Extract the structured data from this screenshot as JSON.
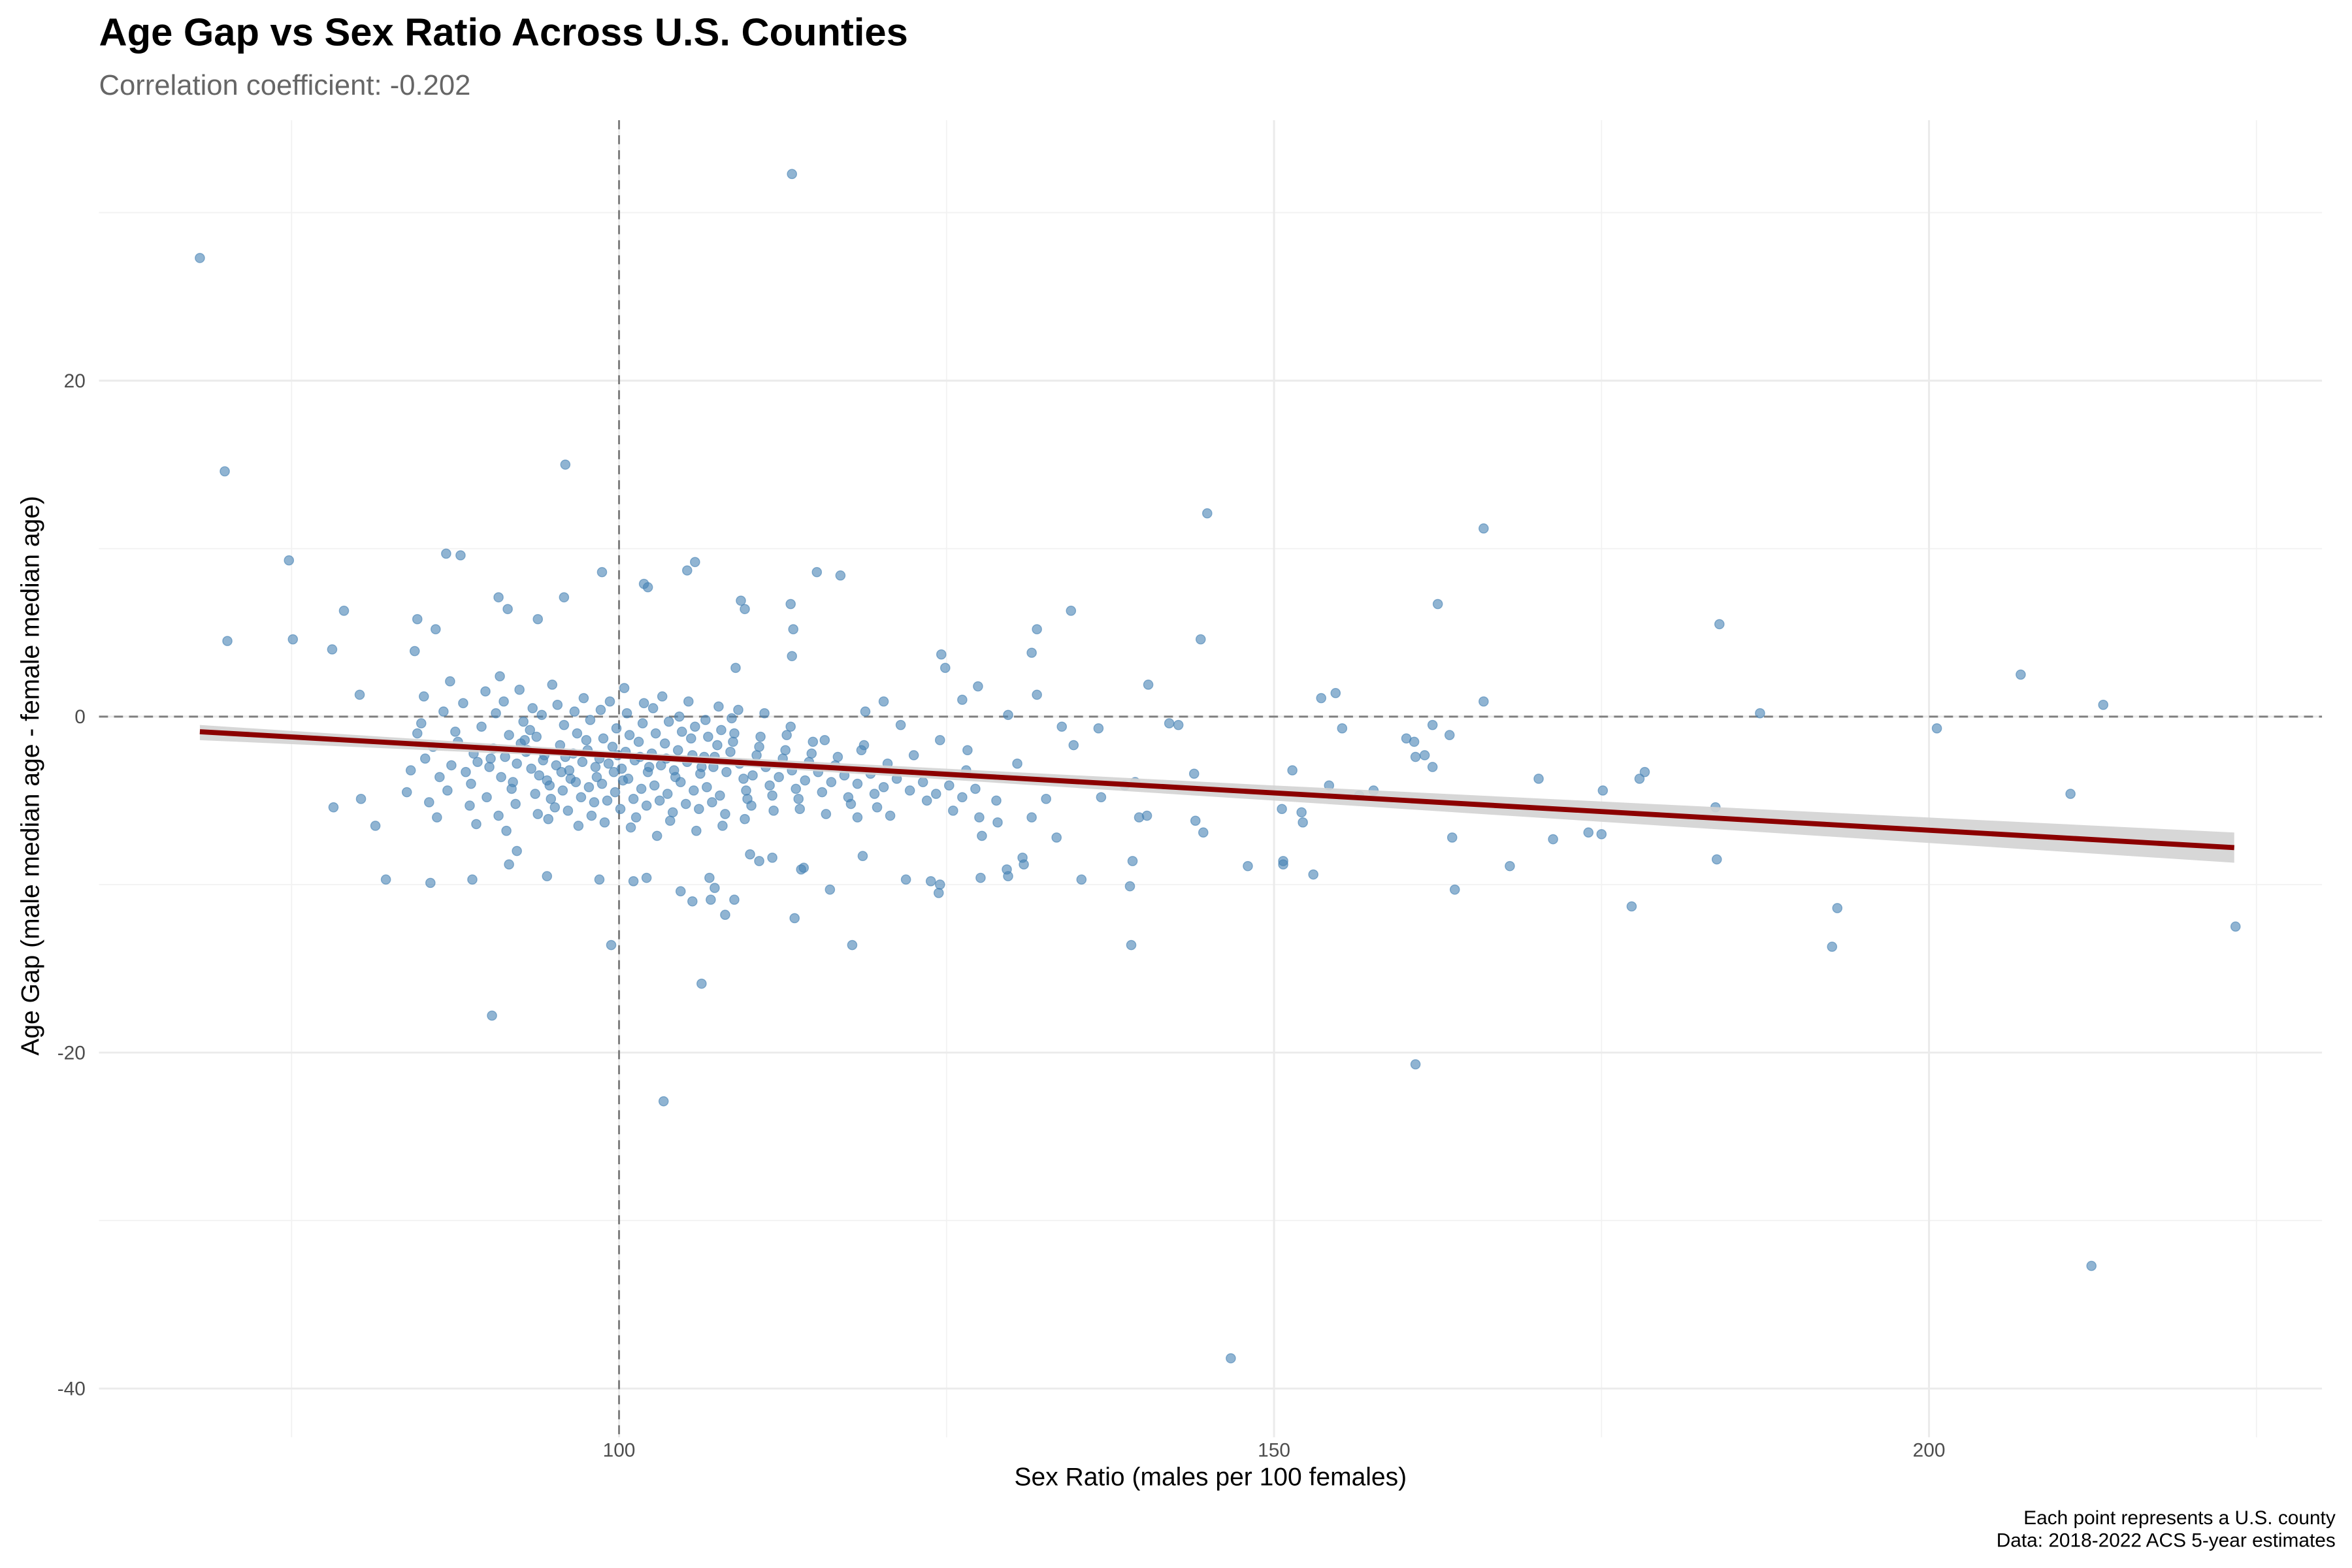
{
  "chart_data": {
    "type": "scatter",
    "title": "Age Gap vs Sex Ratio Across U.S. Counties",
    "subtitle": "Correlation coefficient: -0.202",
    "xlabel": "Sex Ratio (males per 100 females)",
    "ylabel": "Age Gap (male median age - female median age)",
    "caption": [
      "Each point represents a U.S. county",
      "Data: 2018-2022 ACS 5-year estimates"
    ],
    "xlim": [
      60.3,
      230.0
    ],
    "ylim": [
      -42.9,
      35.5
    ],
    "x_ticks": [
      100,
      150,
      200
    ],
    "y_ticks": [
      -40,
      -20,
      0,
      20
    ],
    "x_minor": [
      75,
      125,
      175,
      225
    ],
    "y_minor": [
      -30,
      -10,
      10,
      30
    ],
    "grid": true,
    "reference_lines": {
      "x": 100,
      "y": 0,
      "style": "dashed"
    },
    "colors": {
      "points": "#4682b4",
      "trend": "#8b0000",
      "band": "#d3d3d3",
      "reference": "#7f7f7f",
      "grid": "#ebebeb"
    },
    "trend_line": {
      "type": "linear",
      "x": [
        68.0,
        223.3
      ],
      "y": [
        -0.9,
        -7.8
      ]
    },
    "confidence_band": [
      [
        68.0,
        -1.4,
        -0.5
      ],
      [
        100,
        -2.5,
        -2.1
      ],
      [
        150,
        -5.0,
        -4.1
      ],
      [
        223.3,
        -8.7,
        -6.9
      ]
    ],
    "points": [
      [
        68.0,
        27.3
      ],
      [
        113.2,
        32.3
      ],
      [
        69.9,
        14.6
      ],
      [
        70.1,
        4.5
      ],
      [
        74.8,
        9.3
      ],
      [
        75.1,
        4.6
      ],
      [
        79.0,
        6.3
      ],
      [
        78.1,
        4.0
      ],
      [
        78.2,
        -5.4
      ],
      [
        80.2,
        1.3
      ],
      [
        80.3,
        -4.9
      ],
      [
        81.4,
        -6.5
      ],
      [
        95.9,
        15.0
      ],
      [
        86.8,
        9.7
      ],
      [
        87.9,
        9.6
      ],
      [
        85.6,
        -9.9
      ],
      [
        90.3,
        -17.8
      ],
      [
        99.4,
        -13.6
      ],
      [
        103.4,
        -22.9
      ],
      [
        106.3,
        -15.9
      ],
      [
        113.4,
        -12.0
      ],
      [
        117.8,
        -13.6
      ],
      [
        146.7,
        -38.2
      ],
      [
        144.9,
        12.1
      ],
      [
        144.4,
        4.6
      ],
      [
        166.0,
        11.2
      ],
      [
        162.5,
        6.7
      ],
      [
        166.0,
        0.9
      ],
      [
        184.0,
        5.5
      ],
      [
        187.1,
        0.2
      ],
      [
        207.0,
        2.5
      ],
      [
        213.3,
        0.7
      ],
      [
        200.6,
        -0.7
      ],
      [
        210.8,
        -4.6
      ],
      [
        212.4,
        -32.7
      ],
      [
        223.4,
        -12.5
      ],
      [
        193.0,
        -11.4
      ],
      [
        192.6,
        -13.7
      ],
      [
        160.8,
        -20.7
      ],
      [
        177.3,
        -11.3
      ],
      [
        183.8,
        -8.5
      ],
      [
        183.7,
        -5.4
      ],
      [
        175.1,
        -4.4
      ],
      [
        175.0,
        -7.0
      ],
      [
        174.0,
        -6.9
      ],
      [
        178.3,
        -3.3
      ],
      [
        177.9,
        -3.7
      ],
      [
        170.2,
        -3.7
      ],
      [
        171.3,
        -7.3
      ],
      [
        168.0,
        -8.9
      ],
      [
        163.8,
        -10.3
      ],
      [
        163.6,
        -7.2
      ],
      [
        163.4,
        -1.1
      ],
      [
        162.1,
        -0.5
      ],
      [
        160.1,
        -1.3
      ],
      [
        160.7,
        -1.5
      ],
      [
        160.8,
        -2.4
      ],
      [
        161.5,
        -2.3
      ],
      [
        162.1,
        -3.0
      ],
      [
        157.6,
        -4.4
      ],
      [
        156.5,
        -4.7
      ],
      [
        155.2,
        -0.7
      ],
      [
        154.7,
        1.4
      ],
      [
        153.6,
        1.1
      ],
      [
        154.2,
        -4.1
      ],
      [
        153.0,
        -9.4
      ],
      [
        152.1,
        -5.7
      ],
      [
        152.2,
        -6.3
      ],
      [
        151.4,
        -3.2
      ],
      [
        150.7,
        -8.6
      ],
      [
        150.7,
        -8.8
      ],
      [
        150.6,
        -5.5
      ],
      [
        148.0,
        -8.9
      ],
      [
        144.6,
        -6.9
      ],
      [
        144.0,
        -6.2
      ],
      [
        143.9,
        -3.4
      ],
      [
        142.7,
        -0.5
      ],
      [
        142.0,
        -0.4
      ],
      [
        140.4,
        1.9
      ],
      [
        140.3,
        -5.9
      ],
      [
        139.7,
        -6.0
      ],
      [
        139.2,
        -8.6
      ],
      [
        139.1,
        -13.6
      ],
      [
        139.0,
        -10.1
      ],
      [
        139.4,
        -3.9
      ],
      [
        138.6,
        -4.1
      ],
      [
        136.8,
        -4.8
      ],
      [
        136.6,
        -0.7
      ],
      [
        135.3,
        -9.7
      ],
      [
        134.7,
        -1.7
      ],
      [
        134.5,
        6.3
      ],
      [
        133.8,
        -0.6
      ],
      [
        133.4,
        -7.2
      ],
      [
        132.6,
        -4.9
      ],
      [
        131.9,
        5.2
      ],
      [
        131.5,
        3.8
      ],
      [
        131.9,
        1.3
      ],
      [
        131.5,
        -6.0
      ],
      [
        130.8,
        -8.4
      ],
      [
        130.9,
        -8.8
      ],
      [
        129.7,
        -9.5
      ],
      [
        129.6,
        -9.1
      ],
      [
        130.4,
        -2.8
      ],
      [
        129.7,
        0.1
      ],
      [
        128.8,
        -5.0
      ],
      [
        128.9,
        -6.3
      ],
      [
        127.6,
        -9.6
      ],
      [
        127.7,
        -7.1
      ],
      [
        127.4,
        1.8
      ],
      [
        126.6,
        -2.0
      ],
      [
        126.2,
        1.0
      ],
      [
        124.5,
        -10.0
      ],
      [
        124.4,
        -10.5
      ],
      [
        124.6,
        3.7
      ],
      [
        124.9,
        2.9
      ],
      [
        123.8,
        -9.8
      ],
      [
        121.9,
        -9.7
      ],
      [
        120.2,
        0.9
      ],
      [
        118.6,
        -8.3
      ],
      [
        118.2,
        -6.0
      ],
      [
        116.9,
        8.4
      ],
      [
        115.1,
        8.6
      ],
      [
        116.1,
        -10.3
      ],
      [
        113.9,
        -9.1
      ],
      [
        114.1,
        -9.0
      ],
      [
        113.3,
        5.2
      ],
      [
        113.1,
        6.7
      ],
      [
        113.2,
        3.6
      ],
      [
        108.9,
        2.9
      ],
      [
        109.6,
        6.4
      ],
      [
        109.3,
        6.9
      ],
      [
        106.9,
        -9.6
      ],
      [
        107.3,
        -10.2
      ],
      [
        108.1,
        -11.8
      ],
      [
        108.8,
        -10.9
      ],
      [
        105.6,
        -11.0
      ],
      [
        107.0,
        -10.9
      ],
      [
        104.7,
        -10.4
      ],
      [
        105.8,
        9.2
      ],
      [
        105.2,
        8.7
      ],
      [
        101.9,
        7.9
      ],
      [
        102.2,
        7.7
      ],
      [
        98.7,
        8.6
      ],
      [
        93.8,
        5.8
      ],
      [
        95.8,
        7.1
      ],
      [
        90.8,
        7.1
      ],
      [
        91.5,
        6.4
      ],
      [
        84.6,
        5.8
      ],
      [
        84.4,
        3.9
      ],
      [
        86.0,
        5.2
      ],
      [
        88.8,
        -9.7
      ],
      [
        82.2,
        -9.7
      ],
      [
        91.6,
        -8.8
      ],
      [
        92.2,
        -8.0
      ],
      [
        94.5,
        -9.5
      ],
      [
        98.5,
        -9.7
      ],
      [
        101.1,
        -9.8
      ],
      [
        102.1,
        -9.6
      ],
      [
        110.7,
        -8.6
      ],
      [
        111.7,
        -8.4
      ],
      [
        110.0,
        -8.2
      ],
      [
        84.1,
        -3.2
      ],
      [
        84.6,
        -1.0
      ],
      [
        83.8,
        -4.5
      ],
      [
        85.2,
        -2.5
      ],
      [
        84.9,
        -0.4
      ],
      [
        85.5,
        -5.1
      ],
      [
        85.1,
        1.2
      ],
      [
        86.3,
        -3.6
      ],
      [
        85.8,
        -1.8
      ],
      [
        86.6,
        0.3
      ],
      [
        86.1,
        -6.0
      ],
      [
        87.2,
        -2.9
      ],
      [
        86.9,
        -4.4
      ],
      [
        87.5,
        -0.9
      ],
      [
        87.1,
        2.1
      ],
      [
        88.3,
        -3.3
      ],
      [
        87.7,
        -1.5
      ],
      [
        88.6,
        -5.3
      ],
      [
        88.1,
        0.8
      ],
      [
        88.9,
        -2.2
      ],
      [
        89.2,
        -2.7
      ],
      [
        88.7,
        -4.0
      ],
      [
        89.5,
        -0.6
      ],
      [
        89.1,
        -6.4
      ],
      [
        89.8,
        1.5
      ],
      [
        90.1,
        -3.0
      ],
      [
        90.4,
        -1.9
      ],
      [
        89.9,
        -4.8
      ],
      [
        90.6,
        0.2
      ],
      [
        90.2,
        -2.5
      ],
      [
        90.8,
        -5.9
      ],
      [
        91.3,
        -2.4
      ],
      [
        91.0,
        -3.6
      ],
      [
        91.6,
        -1.1
      ],
      [
        91.2,
        0.9
      ],
      [
        91.8,
        -4.3
      ],
      [
        91.4,
        -6.8
      ],
      [
        90.9,
        2.4
      ],
      [
        92.2,
        -2.8
      ],
      [
        92.5,
        -1.6
      ],
      [
        91.9,
        -3.9
      ],
      [
        92.7,
        -0.3
      ],
      [
        92.1,
        -5.2
      ],
      [
        92.4,
        1.6
      ],
      [
        92.9,
        -2.1
      ],
      [
        93.3,
        -3.1
      ],
      [
        93.0,
        -2.0
      ],
      [
        93.6,
        -4.6
      ],
      [
        93.2,
        -0.8
      ],
      [
        93.8,
        -5.8
      ],
      [
        93.4,
        0.5
      ],
      [
        92.8,
        -1.4
      ],
      [
        93.9,
        -3.5
      ],
      [
        94.2,
        -2.6
      ],
      [
        94.5,
        -3.8
      ],
      [
        93.7,
        -1.2
      ],
      [
        94.8,
        -4.9
      ],
      [
        94.1,
        0.1
      ],
      [
        94.6,
        -6.1
      ],
      [
        94.3,
        -2.3
      ],
      [
        94.9,
        1.9
      ],
      [
        95.2,
        -2.9
      ],
      [
        95.5,
        -1.7
      ],
      [
        94.7,
        -4.1
      ],
      [
        95.8,
        -0.5
      ],
      [
        95.1,
        -5.4
      ],
      [
        95.6,
        -3.3
      ],
      [
        95.3,
        0.7
      ],
      [
        95.9,
        -2.4
      ],
      [
        96.2,
        -3.2
      ],
      [
        96.5,
        -2.2
      ],
      [
        95.7,
        -4.4
      ],
      [
        96.8,
        -1.0
      ],
      [
        96.1,
        -5.6
      ],
      [
        96.6,
        0.3
      ],
      [
        96.3,
        -3.7
      ],
      [
        96.9,
        -6.5
      ],
      [
        97.2,
        -2.7
      ],
      [
        97.5,
        -1.4
      ],
      [
        96.7,
        -3.9
      ],
      [
        97.8,
        -0.2
      ],
      [
        97.1,
        -4.8
      ],
      [
        97.6,
        -2.0
      ],
      [
        97.3,
        1.1
      ],
      [
        97.9,
        -5.9
      ],
      [
        98.2,
        -3.0
      ],
      [
        98.5,
        -2.5
      ],
      [
        97.7,
        -4.2
      ],
      [
        98.8,
        -1.3
      ],
      [
        98.1,
        -5.1
      ],
      [
        98.6,
        0.4
      ],
      [
        98.3,
        -3.6
      ],
      [
        98.9,
        -6.3
      ],
      [
        99.2,
        -2.8
      ],
      [
        99.5,
        -1.8
      ],
      [
        98.7,
        -4.0
      ],
      [
        99.8,
        -0.7
      ],
      [
        99.1,
        -5.0
      ],
      [
        99.6,
        -3.3
      ],
      [
        99.3,
        0.9
      ],
      [
        99.9,
        -2.3
      ],
      [
        100.2,
        -3.1
      ],
      [
        100.5,
        -2.1
      ],
      [
        99.7,
        -4.5
      ],
      [
        100.8,
        -1.1
      ],
      [
        100.1,
        -5.5
      ],
      [
        100.6,
        0.2
      ],
      [
        100.3,
        -3.8
      ],
      [
        100.9,
        -6.6
      ],
      [
        100.4,
        1.7
      ],
      [
        101.2,
        -2.6
      ],
      [
        101.5,
        -1.5
      ],
      [
        100.7,
        -3.7
      ],
      [
        101.8,
        -0.4
      ],
      [
        101.1,
        -4.9
      ],
      [
        101.6,
        -2.4
      ],
      [
        101.3,
        -6.0
      ],
      [
        101.9,
        0.8
      ],
      [
        102.2,
        -3.3
      ],
      [
        102.5,
        -2.2
      ],
      [
        101.7,
        -4.3
      ],
      [
        102.8,
        -1.0
      ],
      [
        102.1,
        -5.3
      ],
      [
        102.6,
        0.5
      ],
      [
        102.3,
        -3.0
      ],
      [
        102.9,
        -7.1
      ],
      [
        103.2,
        -2.9
      ],
      [
        103.5,
        -1.6
      ],
      [
        102.7,
        -4.1
      ],
      [
        103.8,
        -0.3
      ],
      [
        103.1,
        -5.0
      ],
      [
        103.6,
        -2.5
      ],
      [
        103.3,
        1.2
      ],
      [
        103.9,
        -6.2
      ],
      [
        104.2,
        -3.2
      ],
      [
        104.5,
        -2.0
      ],
      [
        103.7,
        -4.6
      ],
      [
        104.8,
        -0.9
      ],
      [
        104.1,
        -5.7
      ],
      [
        104.6,
        0.0
      ],
      [
        104.3,
        -3.6
      ],
      [
        105.2,
        -2.7
      ],
      [
        105.5,
        -1.3
      ],
      [
        104.7,
        -3.9
      ],
      [
        105.8,
        -0.6
      ],
      [
        105.1,
        -5.2
      ],
      [
        105.6,
        -2.3
      ],
      [
        105.3,
        0.9
      ],
      [
        105.9,
        -6.8
      ],
      [
        106.2,
        -3.4
      ],
      [
        106.5,
        -2.4
      ],
      [
        105.7,
        -4.4
      ],
      [
        106.8,
        -1.2
      ],
      [
        106.1,
        -5.5
      ],
      [
        106.6,
        -0.2
      ],
      [
        106.3,
        -3.0
      ],
      [
        107.2,
        -3.0
      ],
      [
        107.5,
        -1.7
      ],
      [
        106.7,
        -4.2
      ],
      [
        107.8,
        -0.8
      ],
      [
        107.1,
        -5.1
      ],
      [
        107.6,
        0.6
      ],
      [
        107.3,
        -2.4
      ],
      [
        107.9,
        -6.5
      ],
      [
        108.2,
        -3.3
      ],
      [
        108.5,
        -2.1
      ],
      [
        107.7,
        -4.7
      ],
      [
        108.8,
        -1.0
      ],
      [
        108.1,
        -5.8
      ],
      [
        108.6,
        -0.1
      ],
      [
        109.2,
        -2.8
      ],
      [
        109.5,
        -3.7
      ],
      [
        108.7,
        -1.5
      ],
      [
        109.8,
        -4.9
      ],
      [
        109.1,
        0.4
      ],
      [
        109.6,
        -6.1
      ],
      [
        110.2,
        -3.5
      ],
      [
        110.5,
        -2.3
      ],
      [
        109.7,
        -4.4
      ],
      [
        110.8,
        -1.2
      ],
      [
        110.1,
        -5.3
      ],
      [
        111.2,
        -3.0
      ],
      [
        111.5,
        -4.1
      ],
      [
        110.7,
        -1.8
      ],
      [
        111.8,
        -5.6
      ],
      [
        111.1,
        0.2
      ],
      [
        112.2,
        -3.6
      ],
      [
        112.5,
        -2.5
      ],
      [
        111.7,
        -4.7
      ],
      [
        112.8,
        -1.1
      ],
      [
        113.2,
        -3.2
      ],
      [
        113.5,
        -4.3
      ],
      [
        112.7,
        -2.0
      ],
      [
        113.8,
        -5.5
      ],
      [
        113.1,
        -0.6
      ],
      [
        114.2,
        -3.8
      ],
      [
        114.5,
        -2.7
      ],
      [
        113.7,
        -4.9
      ],
      [
        114.8,
        -1.5
      ],
      [
        115.2,
        -3.3
      ],
      [
        115.5,
        -4.5
      ],
      [
        114.7,
        -2.2
      ],
      [
        115.8,
        -5.8
      ],
      [
        116.2,
        -3.9
      ],
      [
        116.5,
        -2.9
      ],
      [
        115.7,
        -1.4
      ],
      [
        117.2,
        -3.5
      ],
      [
        117.5,
        -4.8
      ],
      [
        116.7,
        -2.4
      ],
      [
        118.2,
        -4.0
      ],
      [
        118.5,
        -2.0
      ],
      [
        117.7,
        -5.2
      ],
      [
        118.8,
        0.3
      ],
      [
        119.2,
        -3.4
      ],
      [
        119.5,
        -4.6
      ],
      [
        118.7,
        -1.7
      ],
      [
        120.2,
        -4.2
      ],
      [
        120.5,
        -2.8
      ],
      [
        119.7,
        -5.4
      ],
      [
        121.2,
        -3.7
      ],
      [
        121.5,
        -0.5
      ],
      [
        120.7,
        -5.9
      ],
      [
        122.2,
        -4.4
      ],
      [
        122.5,
        -2.3
      ],
      [
        123.2,
        -3.9
      ],
      [
        123.5,
        -5.0
      ],
      [
        124.2,
        -4.6
      ],
      [
        124.5,
        -1.4
      ],
      [
        125.2,
        -4.1
      ],
      [
        125.5,
        -5.6
      ],
      [
        126.2,
        -4.8
      ],
      [
        126.5,
        -3.2
      ],
      [
        127.2,
        -4.3
      ],
      [
        127.5,
        -6.0
      ]
    ]
  }
}
